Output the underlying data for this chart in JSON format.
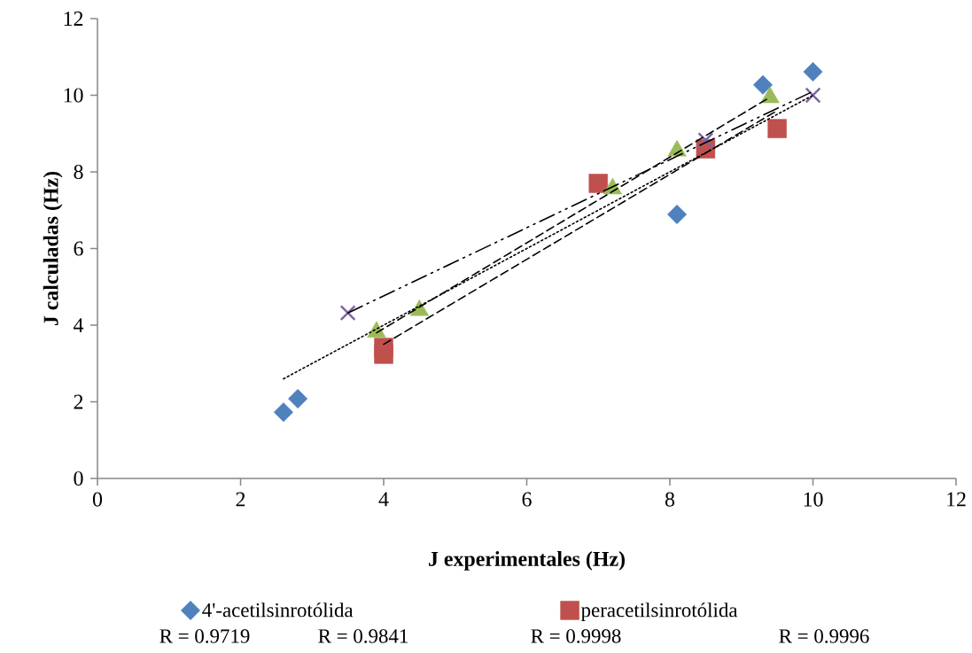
{
  "chart_data": {
    "type": "scatter",
    "xlabel": "J experimentales (Hz)",
    "ylabel": "J calculadas (Hz)",
    "xlim": [
      0,
      12
    ],
    "ylim": [
      0,
      12
    ],
    "xticks": [
      0,
      2,
      4,
      6,
      8,
      10,
      12
    ],
    "yticks": [
      0,
      2,
      4,
      6,
      8,
      10,
      12
    ],
    "legend": "bottom",
    "series": [
      {
        "name": "4'-acetilsinrotólida",
        "color": "#4f81bd",
        "marker": "diamond",
        "x": [
          2.6,
          2.8,
          8.1,
          9.3,
          10.0
        ],
        "values": [
          1.73,
          2.08,
          6.89,
          10.27,
          10.61
        ]
      },
      {
        "name": "peracetilsinrotólida",
        "color": "#c0504d",
        "marker": "square",
        "x": [
          4.0,
          4.0,
          7.0,
          8.5,
          9.5
        ],
        "values": [
          3.24,
          3.42,
          7.7,
          8.6,
          9.13
        ]
      },
      {
        "color": "#9bbb59",
        "marker": "triangle",
        "x": [
          3.9,
          4.5,
          7.2,
          8.1,
          9.4
        ],
        "values": [
          3.82,
          4.39,
          7.56,
          8.55,
          9.94
        ]
      },
      {
        "color": "#8064a2",
        "marker": "cross",
        "x": [
          3.5,
          8.5,
          10.0
        ],
        "values": [
          4.32,
          8.83,
          10.0
        ]
      },
      {
        "type": "line",
        "color": "#000000",
        "marker": "none",
        "line_style": "dotted",
        "x": [
          2.6,
          10.0
        ],
        "values": [
          2.6,
          10.0
        ]
      },
      {
        "type": "line",
        "color": "#000000",
        "marker": "none",
        "line_style": "dashed",
        "x": [
          4.0,
          9.5
        ],
        "values": [
          3.5,
          9.6
        ]
      },
      {
        "type": "line",
        "color": "#000000",
        "marker": "none",
        "line_style": "dashed",
        "x": [
          3.9,
          9.4
        ],
        "values": [
          3.8,
          9.95
        ]
      },
      {
        "type": "line",
        "color": "#000000",
        "marker": "none",
        "line_style": "dashdot",
        "x": [
          3.5,
          10.0
        ],
        "values": [
          4.32,
          10.1
        ]
      }
    ],
    "annotations": [
      "R = 0.9719",
      "R = 0.9841",
      "R = 0.9998",
      "R = 0.9996"
    ]
  }
}
